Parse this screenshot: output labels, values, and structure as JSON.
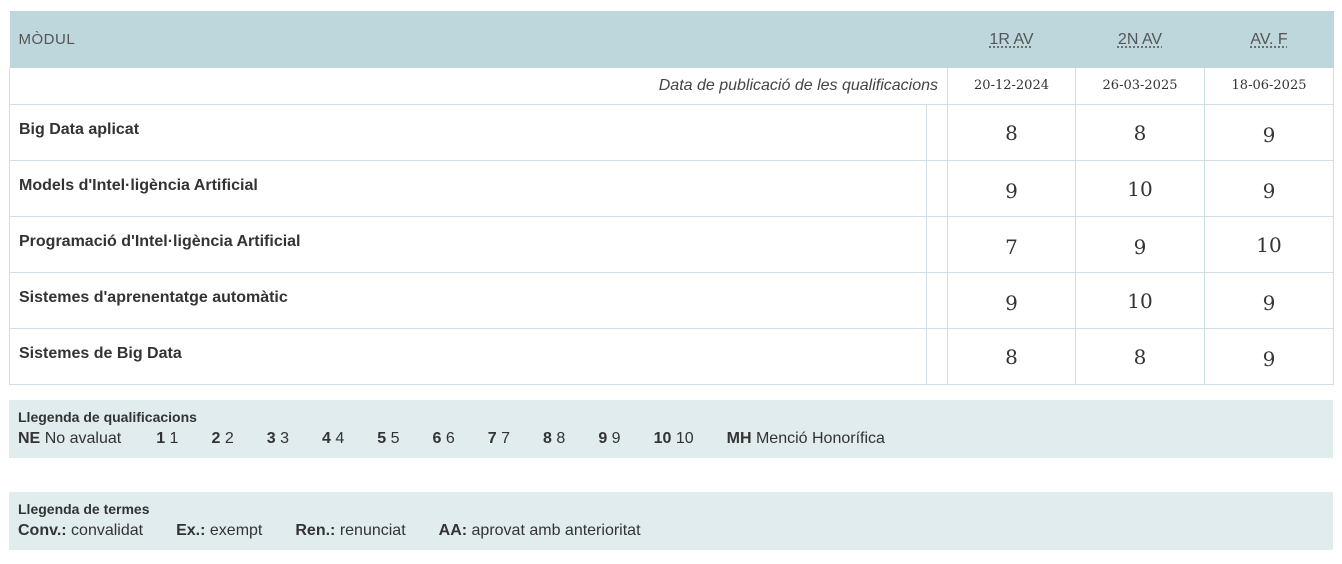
{
  "header": {
    "module_label": "MÒDUL",
    "col1": "1R AV",
    "col2": "2N AV",
    "col3": "AV. F"
  },
  "dates": {
    "label": "Data de publicació de les qualificacions",
    "col1": "20-12-2024",
    "col2": "26-03-2025",
    "col3": "18-06-2025"
  },
  "modules": [
    {
      "name": "Big Data aplicat",
      "g1": "8",
      "g2": "8",
      "g3": "9"
    },
    {
      "name": "Models d'Intel·ligència Artificial",
      "g1": "9",
      "g2": "10",
      "g3": "9"
    },
    {
      "name": "Programació d'Intel·ligència Artificial",
      "g1": "7",
      "g2": "9",
      "g3": "10"
    },
    {
      "name": "Sistemes d'aprenentatge automàtic",
      "g1": "9",
      "g2": "10",
      "g3": "9"
    },
    {
      "name": "Sistemes de Big Data",
      "g1": "8",
      "g2": "8",
      "g3": "9"
    }
  ],
  "grades_legend": {
    "title": "Llegenda de qualificacions",
    "items": [
      {
        "code": "NE",
        "text": "No avaluat"
      },
      {
        "code": "1",
        "text": "1"
      },
      {
        "code": "2",
        "text": "2"
      },
      {
        "code": "3",
        "text": "3"
      },
      {
        "code": "4",
        "text": "4"
      },
      {
        "code": "5",
        "text": "5"
      },
      {
        "code": "6",
        "text": "6"
      },
      {
        "code": "7",
        "text": "7"
      },
      {
        "code": "8",
        "text": "8"
      },
      {
        "code": "9",
        "text": "9"
      },
      {
        "code": "10",
        "text": "10"
      },
      {
        "code": "MH",
        "text": "Menció Honorífica"
      }
    ]
  },
  "terms_legend": {
    "title": "Llegenda de termes",
    "items": [
      {
        "code": "Conv.:",
        "text": "convalidat"
      },
      {
        "code": "Ex.:",
        "text": "exempt"
      },
      {
        "code": "Ren.:",
        "text": "renunciat"
      },
      {
        "code": "AA:",
        "text": "aprovat amb anterioritat"
      }
    ]
  },
  "colors": {
    "header_bg": "#bed7dc",
    "legend_bg": "#e1ecee",
    "border": "#cfe1e4"
  }
}
